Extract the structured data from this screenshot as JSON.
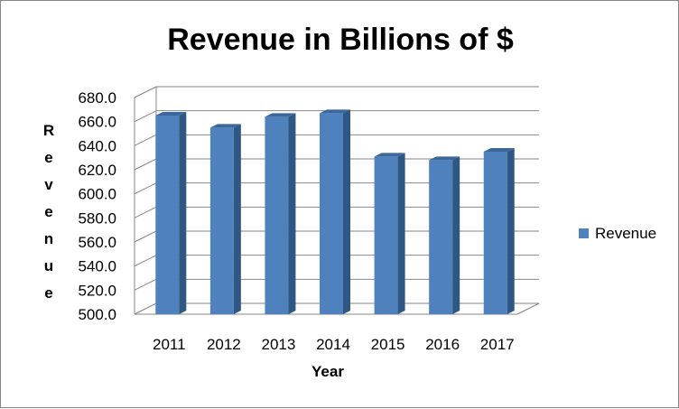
{
  "chart_data": {
    "type": "bar",
    "title": "Revenue in Billions of $",
    "xlabel": "Year",
    "ylabel": "Revenue",
    "categories": [
      "2011",
      "2012",
      "2013",
      "2014",
      "2015",
      "2016",
      "2017"
    ],
    "series": [
      {
        "name": "Revenue",
        "values": [
          665,
          655,
          664,
          667,
          631,
          628,
          635
        ]
      }
    ],
    "ylim": [
      500,
      680
    ],
    "yticks": [
      "500.0",
      "520.0",
      "540.0",
      "560.0",
      "580.0",
      "600.0",
      "620.0",
      "640.0",
      "660.0",
      "680.0"
    ],
    "grid": true,
    "legend": "right",
    "style": "3d-column",
    "colors": {
      "bar": "#4F81BD",
      "bar_side": "#2F5783",
      "bar_top": "#3B679B",
      "grid": "#868686"
    }
  }
}
